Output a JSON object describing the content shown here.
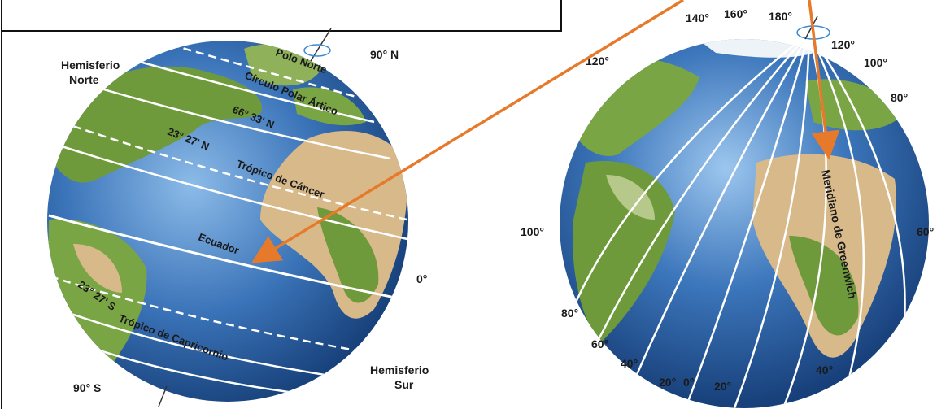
{
  "colors": {
    "ocean_deep": "#1d4f8f",
    "ocean_light": "#6fa3d8",
    "land_green": "#6f9a3c",
    "land_desert": "#d8b98a",
    "grid_lines": "#ffffff",
    "arrows": "#e77a2a",
    "text": "#1a1a1a"
  },
  "left_globe": {
    "labels": {
      "hemisphere_north": [
        "Hemisferio",
        "Norte"
      ],
      "pole_north": "90° N",
      "pole_north_name": "Polo Norte",
      "arctic_circle": "Círculo Polar Ártico",
      "arctic_lat": "66° 33' N",
      "cancer_lat": "23° 27' N",
      "tropic_cancer": "Trópico de Cáncer",
      "equator": "Ecuador",
      "zero": "0°",
      "capricorn_lat": "23° 27' S",
      "tropic_capricorn": "Trópico de Capricornio",
      "pole_south": "90° S",
      "hemisphere_south": [
        "Hemisferio",
        "Sur"
      ]
    }
  },
  "right_globe": {
    "longitude_labels": {
      "top": [
        "140°",
        "160°",
        "180°",
        "120°"
      ],
      "left_120": "120°",
      "right_100": "100°",
      "right_80": "80°",
      "left_100": "100°",
      "right_60": "60°",
      "left_80": "80°",
      "left_60": "60°",
      "bottom_40_left": "40°",
      "bottom_20_left": "20°",
      "bottom_0": "0°",
      "bottom_20_right": "20°",
      "bottom_40_right": "40°"
    },
    "meridian_name": "Meridiano de Greenwich"
  }
}
